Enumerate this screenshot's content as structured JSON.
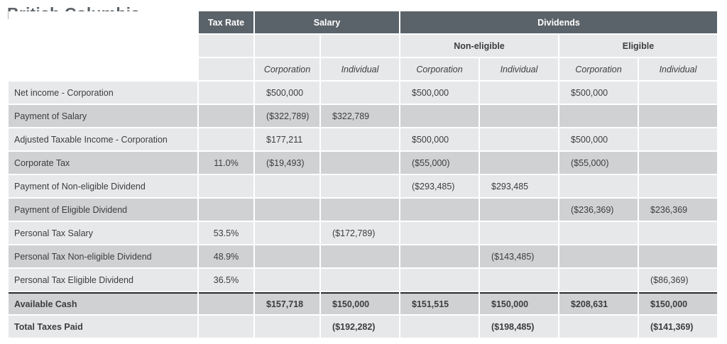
{
  "title": "British Columbia",
  "headers": {
    "tax_rate": "Tax Rate",
    "salary": "Salary",
    "dividends": "Dividends",
    "non_eligible": "Non-eligible",
    "eligible": "Eligible",
    "corporation": "Corporation",
    "individual": "Individual"
  },
  "rows": [
    {
      "label": "Net income - Corporation",
      "rate": "",
      "cells": [
        "$500,000",
        "",
        "$500,000",
        "",
        "$500,000",
        ""
      ]
    },
    {
      "label": "Payment of Salary",
      "rate": "",
      "cells": [
        "($322,789)",
        "$322,789",
        "",
        "",
        "",
        ""
      ]
    },
    {
      "label": "Adjusted Taxable Income - Corporation",
      "rate": "",
      "cells": [
        "$177,211",
        "",
        "$500,000",
        "",
        "$500,000",
        ""
      ]
    },
    {
      "label": "Corporate Tax",
      "rate": "11.0%",
      "cells": [
        "($19,493)",
        "",
        "($55,000)",
        "",
        "($55,000)",
        ""
      ]
    },
    {
      "label": "Payment of Non-eligible Dividend",
      "rate": "",
      "cells": [
        "",
        "",
        "($293,485)",
        "$293,485",
        "",
        ""
      ]
    },
    {
      "label": "Payment of Eligible Dividend",
      "rate": "",
      "cells": [
        "",
        "",
        "",
        "",
        "($236,369)",
        "$236,369"
      ]
    },
    {
      "label": "Personal Tax Salary",
      "rate": "53.5%",
      "cells": [
        "",
        "($172,789)",
        "",
        "",
        "",
        ""
      ]
    },
    {
      "label": "Personal Tax Non-eligible Dividend",
      "rate": "48.9%",
      "cells": [
        "",
        "",
        "",
        "($143,485)",
        "",
        ""
      ]
    },
    {
      "label": "Personal Tax Eligible Dividend",
      "rate": "36.5%",
      "cells": [
        "",
        "",
        "",
        "",
        "",
        "($86,369)"
      ]
    },
    {
      "label": "Available Cash",
      "rate": "",
      "cells": [
        "$157,718",
        "$150,000",
        "$151,515",
        "$150,000",
        "$208,631",
        "$150,000"
      ]
    },
    {
      "label": "Total Taxes Paid",
      "rate": "",
      "cells": [
        "",
        "($192,282)",
        "",
        "($198,485)",
        "",
        "($141,369)"
      ]
    }
  ]
}
